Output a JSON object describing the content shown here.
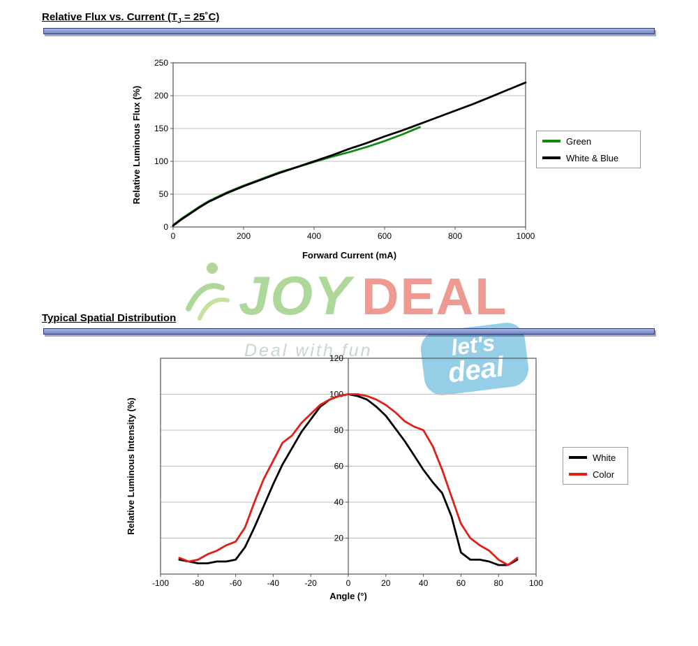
{
  "section1": {
    "title": {
      "pre": "Relative Flux vs. Current (T",
      "sub": "J",
      "post": " = 25˚C)"
    }
  },
  "section2": {
    "title": "Typical Spatial Distribution"
  },
  "divider_color": "#7487c2",
  "watermark": {
    "joy": "JOY",
    "deal": "DEAL",
    "tagline": "Deal with fun",
    "badge_line1": "let's",
    "badge_line2": "deal",
    "colors": {
      "joy": "#5fb037",
      "deal": "#de3726",
      "badge": "#2f9fd0"
    }
  },
  "chart_data": [
    {
      "type": "line",
      "title": "Relative Flux vs. Current (TJ = 25°C)",
      "xlabel": "Forward Current (mA)",
      "ylabel": "Relative Luminous Flux (%)",
      "xlim": [
        0,
        1000
      ],
      "ylim": [
        0,
        250
      ],
      "xticks": [
        0,
        200,
        400,
        600,
        800,
        1000
      ],
      "yticks": [
        0,
        50,
        100,
        150,
        200,
        250
      ],
      "grid": "horizontal",
      "legend_position": "right",
      "series": [
        {
          "name": "Green",
          "color": "#0f8a0f",
          "x": [
            0,
            25,
            50,
            75,
            100,
            150,
            200,
            250,
            300,
            350,
            400,
            450,
            500,
            550,
            600,
            650,
            700
          ],
          "y": [
            3,
            13,
            22,
            31,
            39,
            52,
            63,
            73,
            83,
            91,
            99,
            107,
            114,
            122,
            131,
            141,
            152
          ]
        },
        {
          "name": "White & Blue",
          "color": "#000000",
          "x": [
            0,
            25,
            50,
            75,
            100,
            150,
            200,
            250,
            300,
            350,
            400,
            450,
            500,
            550,
            600,
            650,
            700,
            750,
            800,
            850,
            900,
            950,
            1000
          ],
          "y": [
            2,
            12,
            21,
            30,
            38,
            51,
            62,
            72,
            82,
            91,
            100,
            109,
            119,
            128,
            138,
            147,
            157,
            167,
            177,
            187,
            198,
            209,
            220
          ]
        }
      ]
    },
    {
      "type": "line",
      "title": "Typical Spatial Distribution",
      "xlabel": "Angle (°)",
      "ylabel": "Relative Luminous Intensity (%)",
      "xlim": [
        -100,
        100
      ],
      "ylim": [
        0,
        120
      ],
      "xticks": [
        -100,
        -80,
        -60,
        -40,
        -20,
        0,
        20,
        40,
        60,
        80,
        100
      ],
      "yticks": [
        20,
        40,
        60,
        80,
        100,
        120
      ],
      "grid": "horizontal",
      "legend_position": "right",
      "series": [
        {
          "name": "White",
          "color": "#000000",
          "x": [
            -90,
            -85,
            -80,
            -75,
            -70,
            -65,
            -60,
            -55,
            -50,
            -45,
            -40,
            -35,
            -30,
            -25,
            -20,
            -15,
            -10,
            -5,
            0,
            5,
            10,
            15,
            20,
            25,
            30,
            35,
            40,
            45,
            50,
            55,
            60,
            65,
            70,
            75,
            80,
            85,
            90
          ],
          "y": [
            8,
            7,
            6,
            6,
            7,
            7,
            8,
            15,
            26,
            38,
            50,
            61,
            70,
            79,
            86,
            93,
            97,
            99,
            100,
            99,
            97,
            93,
            88,
            81,
            74,
            66,
            58,
            51,
            45,
            32,
            12,
            8,
            8,
            7,
            5,
            5,
            8
          ]
        },
        {
          "name": "Color",
          "color": "#e02016",
          "x": [
            -90,
            -85,
            -80,
            -75,
            -70,
            -65,
            -60,
            -55,
            -50,
            -45,
            -40,
            -35,
            -30,
            -25,
            -20,
            -15,
            -10,
            -5,
            0,
            5,
            10,
            15,
            20,
            25,
            30,
            35,
            40,
            45,
            50,
            55,
            60,
            65,
            70,
            75,
            80,
            85,
            90
          ],
          "y": [
            9,
            7,
            8,
            11,
            13,
            16,
            18,
            26,
            40,
            53,
            63,
            73,
            77,
            84,
            89,
            94,
            97,
            99,
            100,
            100,
            99,
            97,
            94,
            90,
            85,
            82,
            80,
            71,
            58,
            43,
            28,
            20,
            16,
            13,
            8,
            5,
            9
          ]
        }
      ]
    }
  ]
}
